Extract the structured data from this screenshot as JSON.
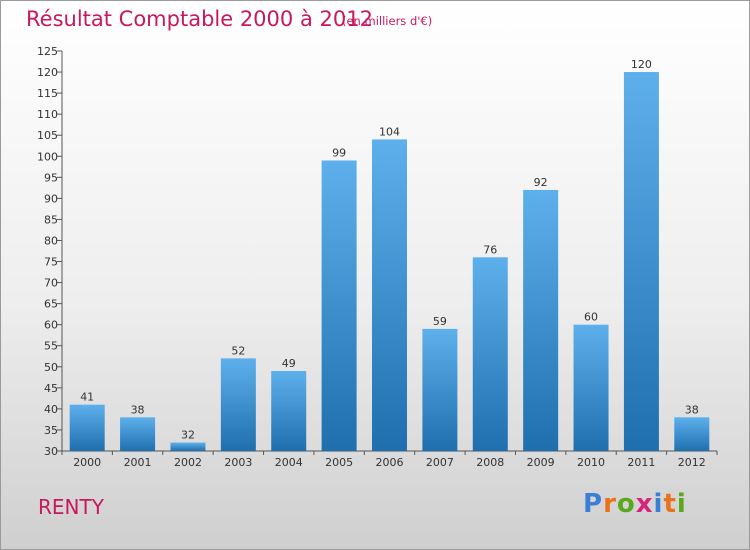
{
  "header": {
    "title": "Résultat Comptable 2000 à 2012",
    "subtitle": "(en milliers d'€)"
  },
  "footer": {
    "town": "RENTY",
    "brand": "Proxiti",
    "brand_letter_colors": [
      "#3a7fd5",
      "#e8731c",
      "#5aa81e",
      "#d8237a",
      "#3a7fd5",
      "#e8731c",
      "#5aa81e"
    ]
  },
  "colors": {
    "bar_top": "#5eb0ec",
    "bar_bottom": "#1f6fae",
    "title": "#c8185e"
  },
  "chart_data": {
    "type": "bar",
    "title": "Résultat Comptable 2000 à 2012",
    "subtitle": "(en milliers d'€)",
    "xlabel": "",
    "ylabel": "",
    "ylim": [
      30,
      125
    ],
    "ytick_step": 5,
    "grid": false,
    "categories": [
      "2000",
      "2001",
      "2002",
      "2003",
      "2004",
      "2005",
      "2006",
      "2007",
      "2008",
      "2009",
      "2010",
      "2011",
      "2012"
    ],
    "values": [
      41,
      38,
      32,
      52,
      49,
      99,
      104,
      59,
      76,
      92,
      60,
      120,
      38
    ]
  }
}
